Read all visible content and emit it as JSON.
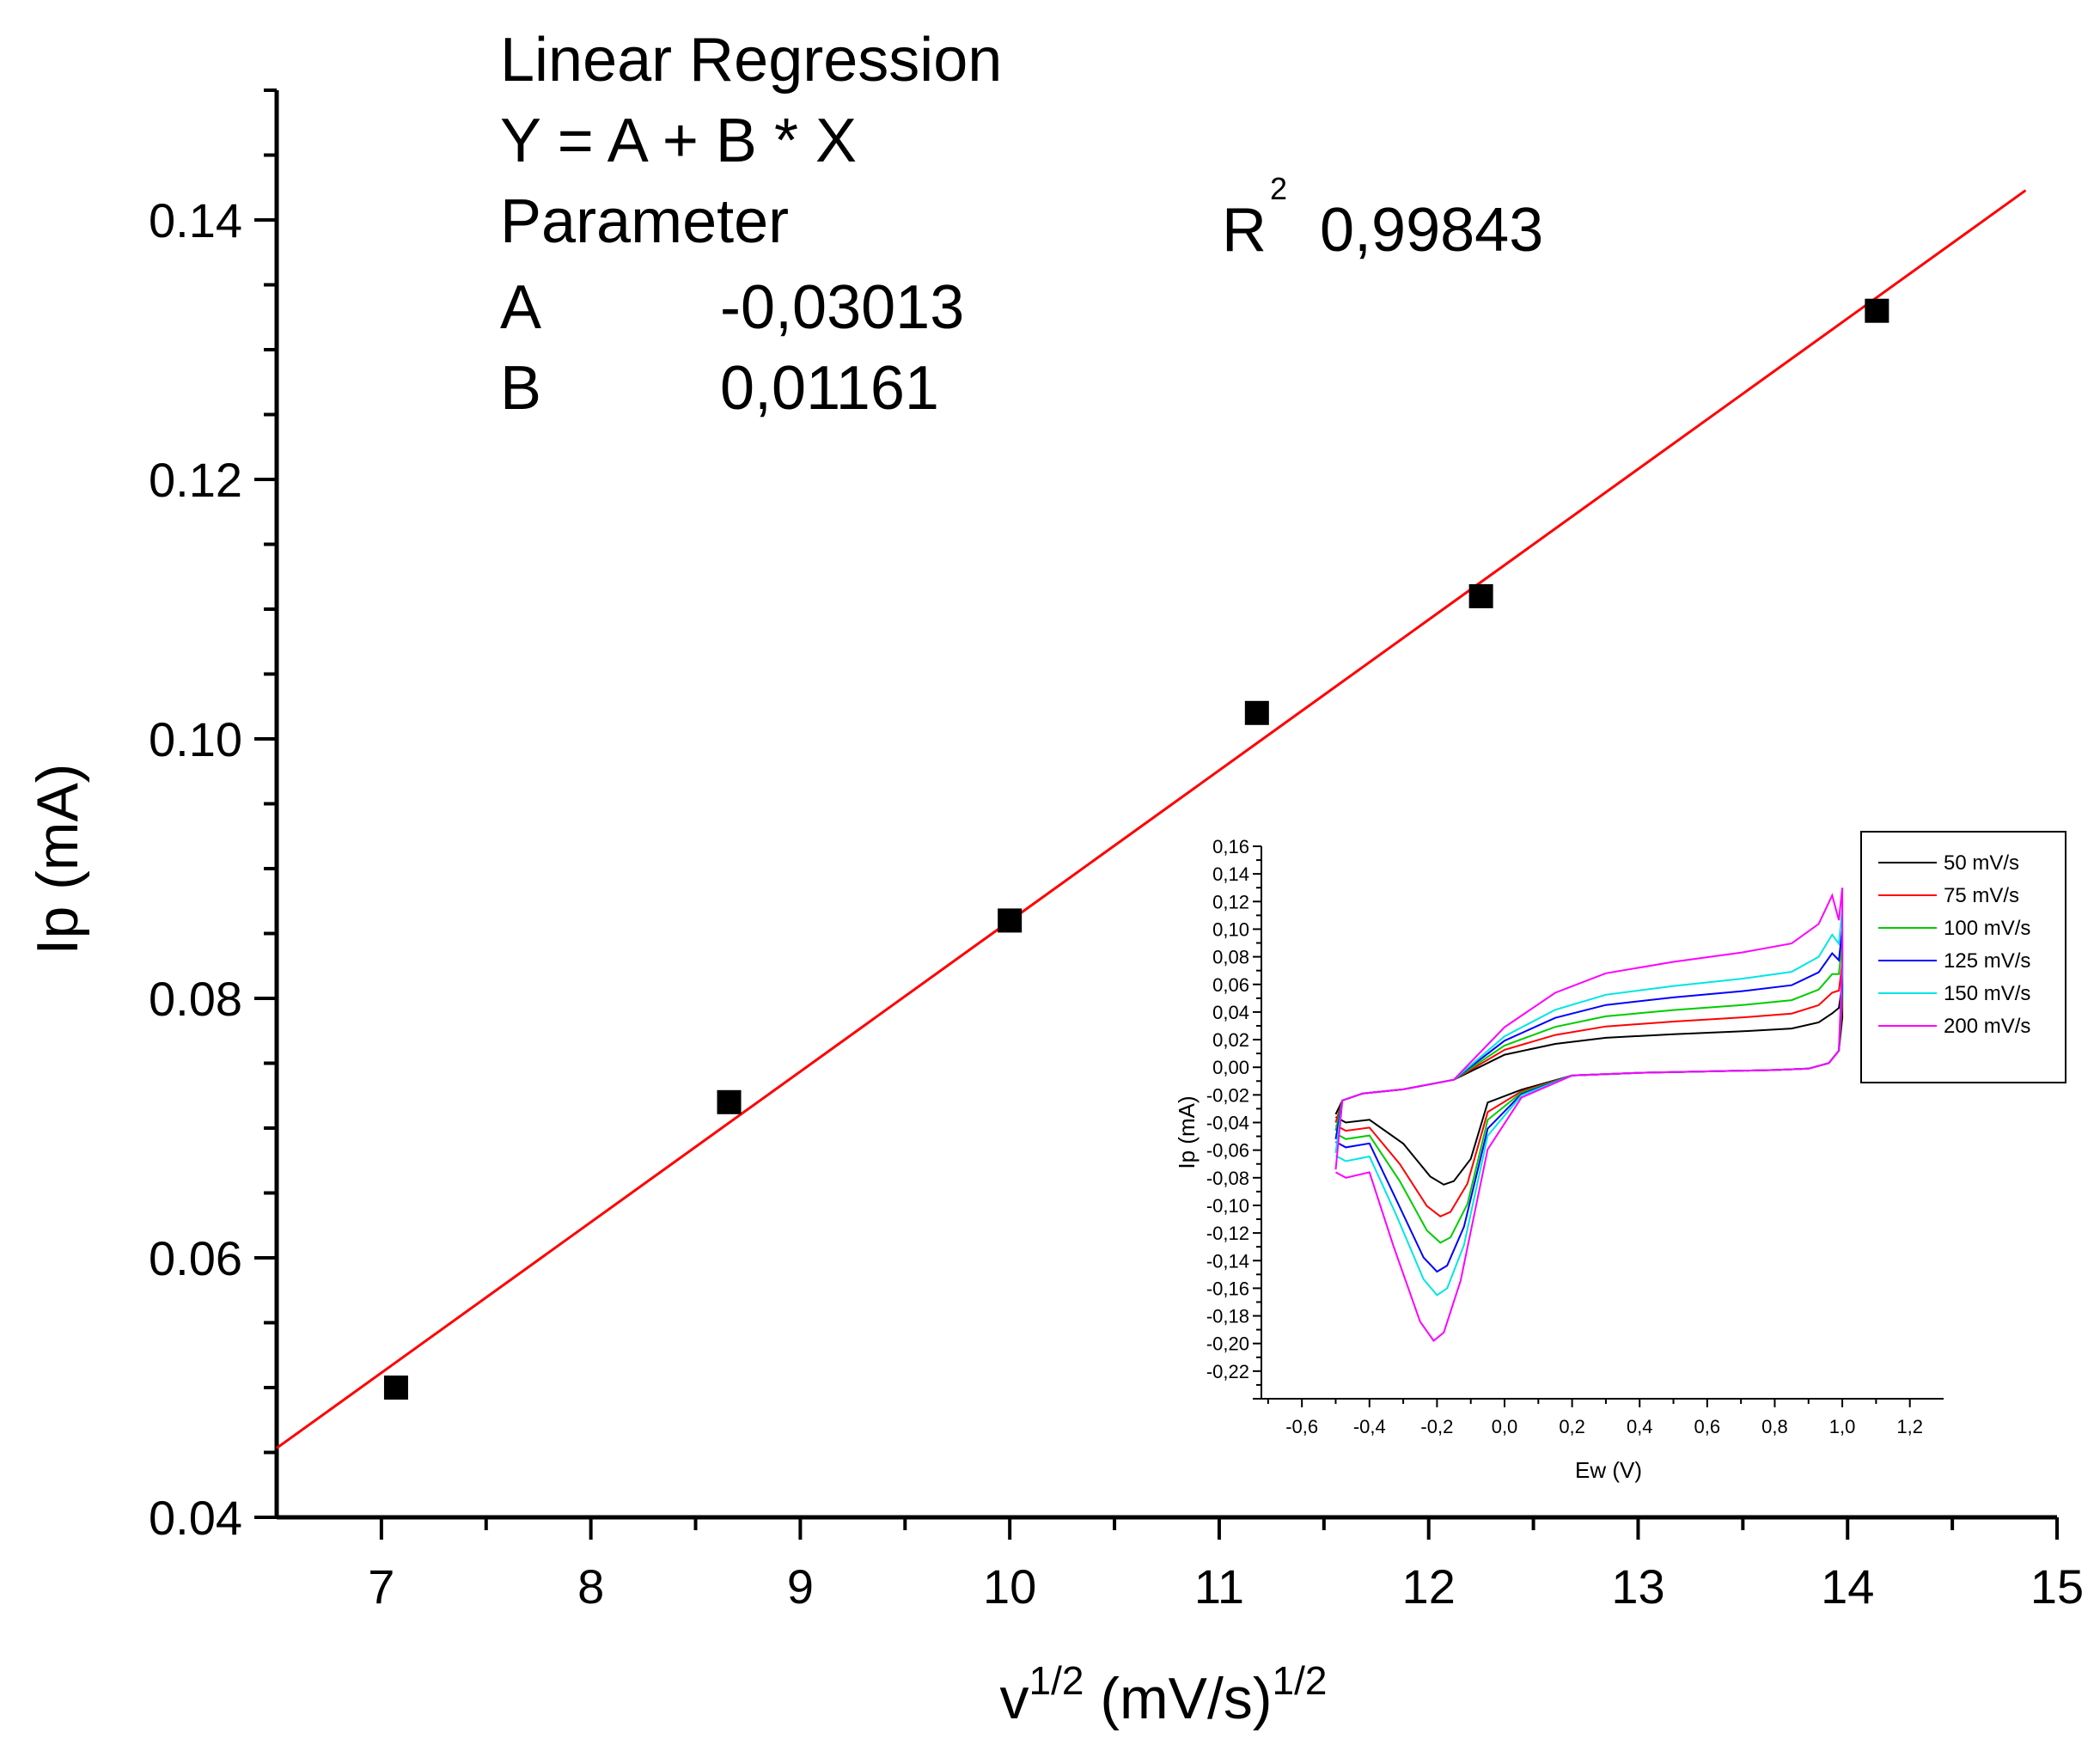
{
  "chart_data": [
    {
      "type": "scatter",
      "title": "",
      "xlabel": {
        "base": "v",
        "exp": "1/2",
        "unit": "(mV/s)",
        "unit_exp": "1/2"
      },
      "ylabel": "Ip (mA)",
      "xlim": [
        6.5,
        15
      ],
      "ylim": [
        0.04,
        0.15
      ],
      "x_ticks": [
        "7",
        "8",
        "9",
        "10",
        "11",
        "12",
        "13",
        "14",
        "15"
      ],
      "y_ticks": [
        "0.04",
        "0.06",
        "0.08",
        "0.10",
        "0.12",
        "0.14"
      ],
      "series": [
        {
          "name": "data",
          "x": [
            7.07,
            8.66,
            10.0,
            11.18,
            12.25,
            14.14
          ],
          "y": [
            0.05,
            0.072,
            0.086,
            0.102,
            0.111,
            0.133
          ],
          "marker": "square",
          "color": "#000000"
        }
      ],
      "fit": {
        "type": "linear",
        "intercept": -0.03013,
        "slope": 0.01161,
        "x_range": [
          6.5,
          14.85
        ],
        "color": "#ff0000"
      },
      "annotation": {
        "title": "Linear Regression",
        "equation": "Y = A + B * X",
        "parameter_label": "Parameter",
        "r2_label": "R",
        "r2_sup": "2",
        "r2_value": "0,99843",
        "a_label": "A",
        "a_value": "-0,03013",
        "b_label": "B",
        "b_value": "0,01161"
      }
    },
    {
      "type": "line",
      "title": "",
      "xlabel": "Ew (V)",
      "ylabel": "Ip (mA)",
      "xlim": [
        -0.72,
        1.3
      ],
      "ylim": [
        -0.24,
        0.16
      ],
      "x_ticks": [
        "-0,6",
        "-0,4",
        "-0,2",
        "0,0",
        "0,2",
        "0,4",
        "0,6",
        "0,8",
        "1,0",
        "1,2"
      ],
      "y_ticks": [
        "0,16",
        "0,14",
        "0,12",
        "0,10",
        "0,08",
        "0,06",
        "0,04",
        "0,02",
        "0,00",
        "-0,02",
        "-0,04",
        "-0,06",
        "-0,08",
        "-0,10",
        "-0,12",
        "-0,14",
        "-0,16",
        "-0,18",
        "-0,20",
        "-0,22"
      ],
      "legend": "top-right",
      "series": [
        {
          "name": "50 mV/s",
          "color": "#000000",
          "anodic_plateau": 0.026,
          "anodic_end": 0.06,
          "cathodic_start": -0.04,
          "cathodic_peak": -0.085,
          "peak_potential": -0.18
        },
        {
          "name": "75 mV/s",
          "color": "#ff0000",
          "anodic_plateau": 0.036,
          "anodic_end": 0.075,
          "cathodic_start": -0.046,
          "cathodic_peak": -0.108,
          "peak_potential": -0.19
        },
        {
          "name": "100 mV/s",
          "color": "#00cc00",
          "anodic_plateau": 0.045,
          "anodic_end": 0.09,
          "cathodic_start": -0.052,
          "cathodic_peak": -0.127,
          "peak_potential": -0.19
        },
        {
          "name": "125 mV/s",
          "color": "#0000ff",
          "anodic_plateau": 0.055,
          "anodic_end": 0.1,
          "cathodic_start": -0.058,
          "cathodic_peak": -0.148,
          "peak_potential": -0.2
        },
        {
          "name": "150 mV/s",
          "color": "#00e5e5",
          "anodic_plateau": 0.064,
          "anodic_end": 0.115,
          "cathodic_start": -0.068,
          "cathodic_peak": -0.165,
          "peak_potential": -0.2
        },
        {
          "name": "200 mV/s",
          "color": "#ff00ff",
          "anodic_plateau": 0.083,
          "anodic_end": 0.13,
          "cathodic_start": -0.08,
          "cathodic_peak": -0.198,
          "peak_potential": -0.21
        }
      ]
    }
  ]
}
